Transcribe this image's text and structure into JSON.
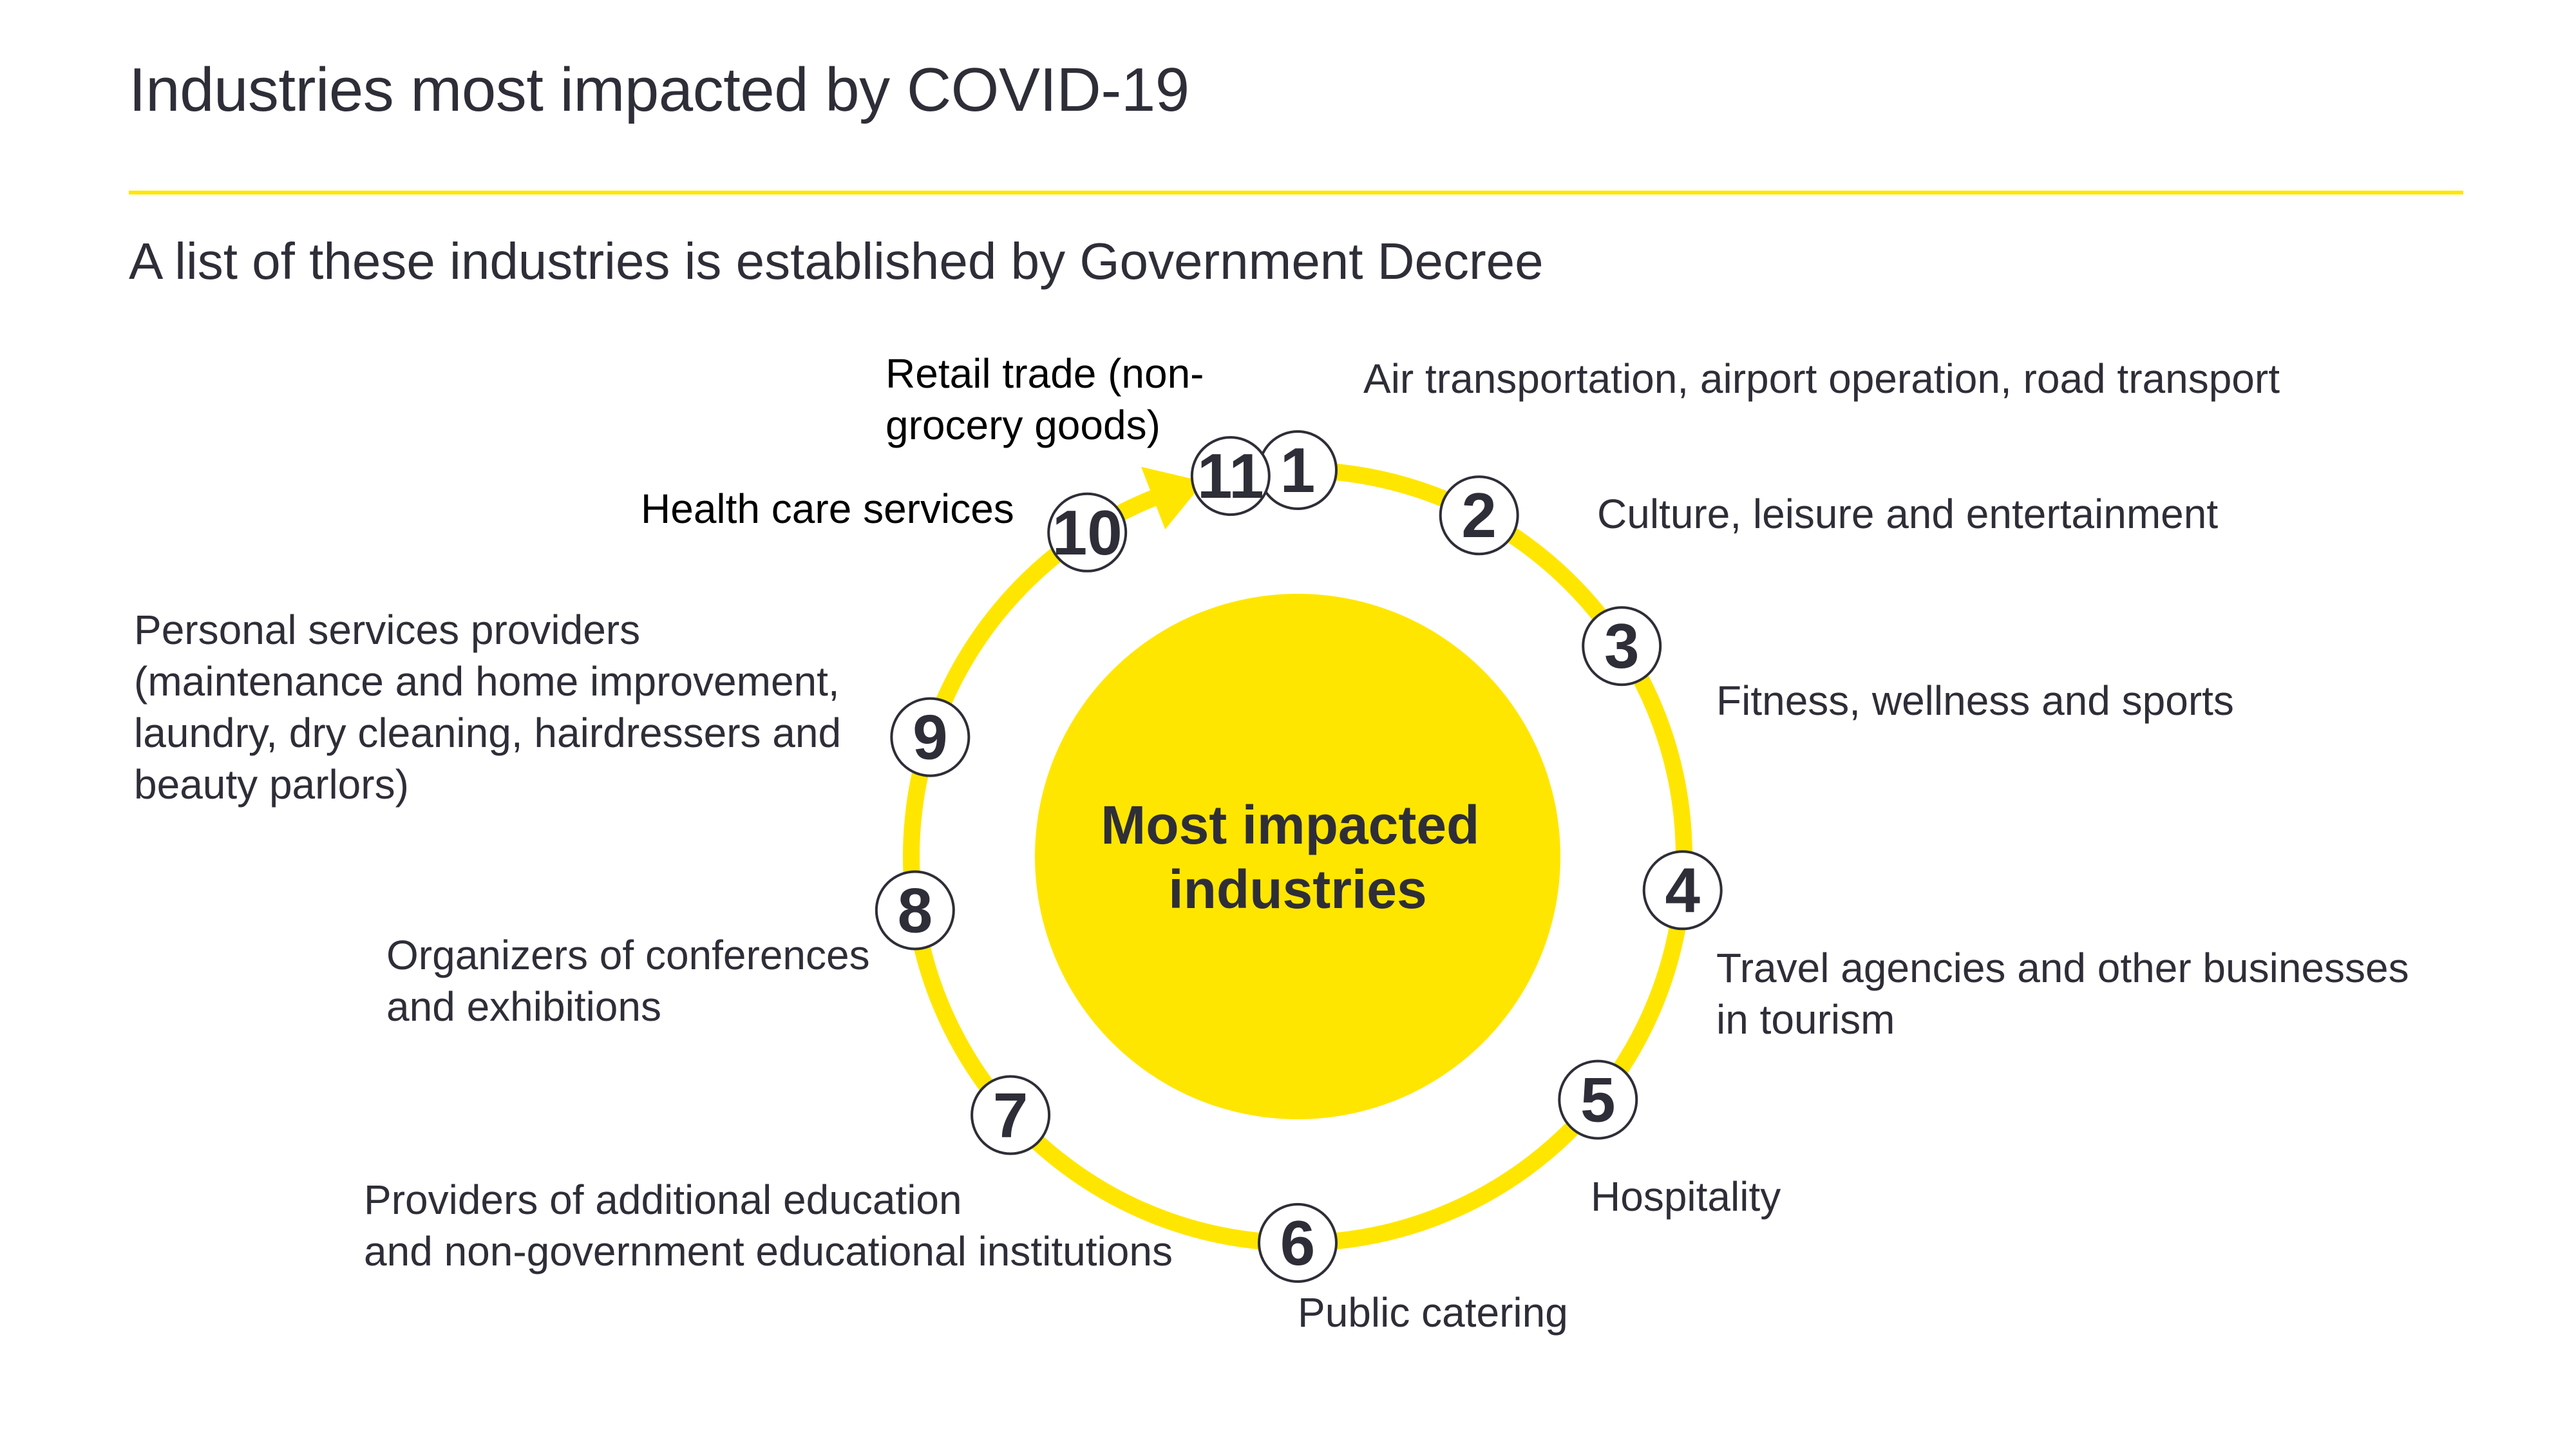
{
  "header": {
    "title": "Industries most impacted by COVID-19",
    "subtitle": "A list of these industries is established by Government Decree"
  },
  "center": {
    "lines": [
      "Most impacted",
      "industries"
    ]
  },
  "colors": {
    "accent": "#ffe600",
    "rule": "#ffe600",
    "text": "#2e2e38",
    "node_border": "#2e2e38",
    "node_fill": "#ffffff"
  },
  "industries": [
    {
      "number": "1",
      "lines": [
        "Air transportation, airport operation, road transport"
      ]
    },
    {
      "number": "2",
      "lines": [
        "Culture, leisure and entertainment"
      ]
    },
    {
      "number": "3",
      "lines": [
        "Fitness, wellness and sports"
      ]
    },
    {
      "number": "4",
      "lines": [
        "Travel agencies and other businesses",
        "in tourism"
      ]
    },
    {
      "number": "5",
      "lines": [
        "Hospitality"
      ]
    },
    {
      "number": "6",
      "lines": [
        "Public catering"
      ]
    },
    {
      "number": "7",
      "lines": [
        "Providers of additional education",
        "and non-government educational institutions"
      ]
    },
    {
      "number": "8",
      "lines": [
        "Organizers of conferences",
        "and exhibitions"
      ]
    },
    {
      "number": "9",
      "lines": [
        "Personal services providers",
        "(maintenance and home improvement,",
        "laundry, dry cleaning, hairdressers and",
        "beauty parlors)"
      ]
    },
    {
      "number": "10",
      "lines": [
        "Health care services"
      ]
    },
    {
      "number": "11",
      "lines": [
        "Retail trade (non-",
        "grocery goods)"
      ]
    }
  ]
}
